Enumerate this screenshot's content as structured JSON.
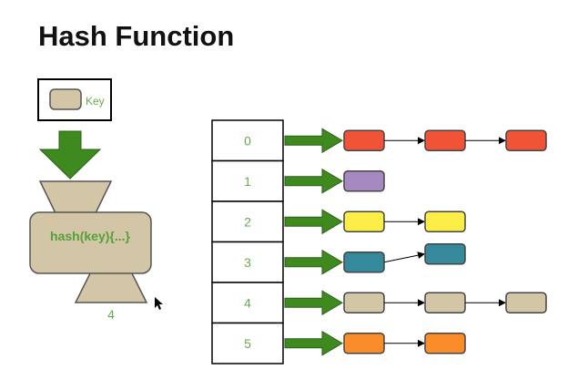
{
  "title": "Hash Function",
  "key_box": {
    "label": "Key",
    "swatch_color": "#d2c6a6"
  },
  "hash_function": {
    "label": "hash(key){...}",
    "output": "4",
    "body_color": "#d2c6a6",
    "text_color": "#55a038"
  },
  "arrow_color": "#3e8a1f",
  "table": {
    "label_color": "#6aa84f",
    "rows": [
      {
        "index": "0",
        "entries": [
          "#f05336",
          "#f05336",
          "#f05336"
        ]
      },
      {
        "index": "1",
        "entries": [
          "#a689c0"
        ]
      },
      {
        "index": "2",
        "entries": [
          "#fdee47",
          "#fdee47"
        ]
      },
      {
        "index": "3",
        "entries": [
          "#35899a",
          "#35899a"
        ]
      },
      {
        "index": "4",
        "entries": [
          "#d2c6a6",
          "#d2c6a6",
          "#d2c6a6"
        ]
      },
      {
        "index": "5",
        "entries": [
          "#fb8c2a",
          "#fb8c2a"
        ]
      }
    ]
  }
}
